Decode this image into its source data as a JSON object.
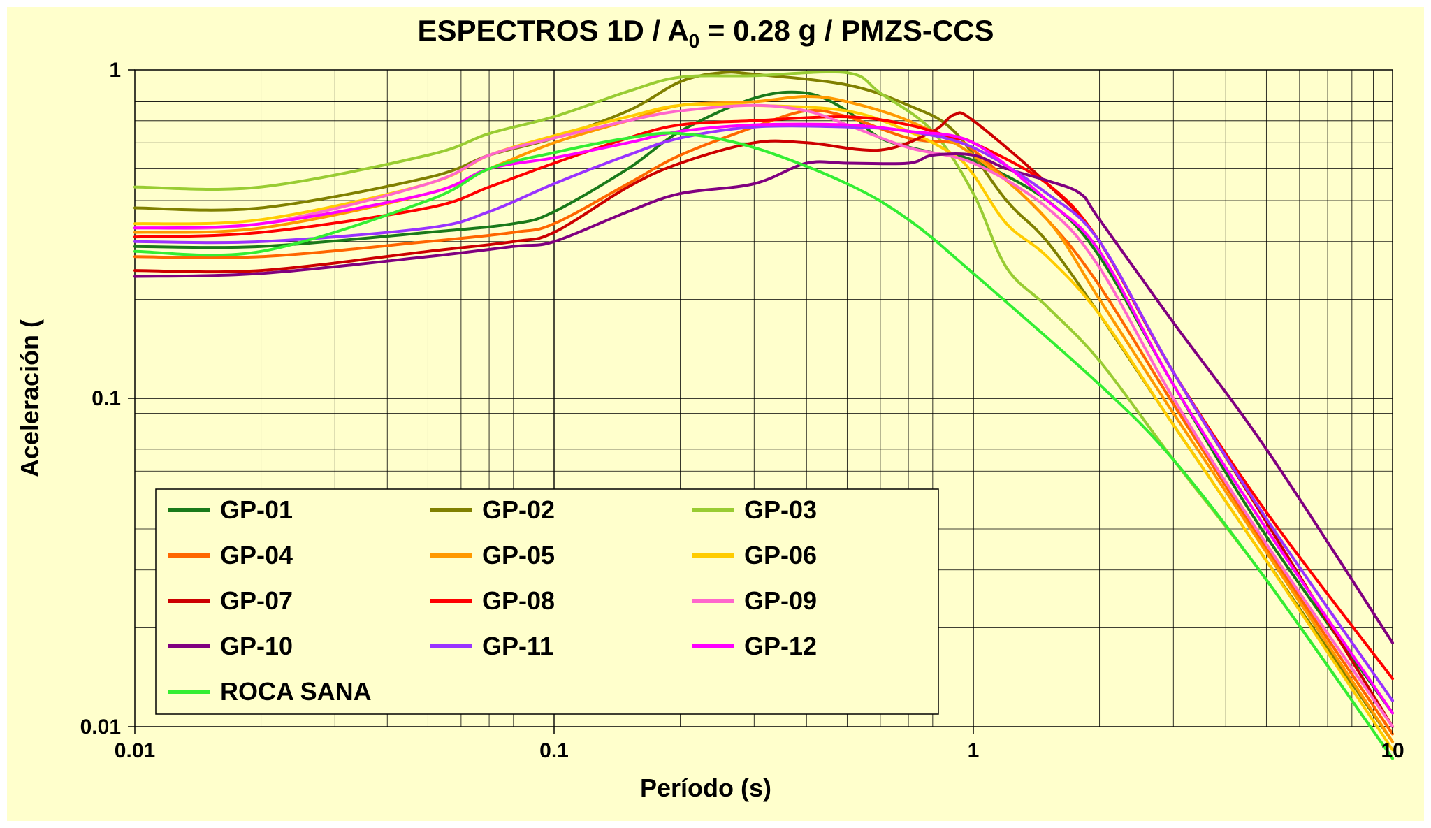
{
  "chart_data": {
    "type": "line",
    "title_main": "ESPECTROS 1D  / A",
    "title_sub": "0",
    "title_tail": " = 0.28 g / PMZS-CCS",
    "xlabel": "Período (s)",
    "ylabel": "Aceleración (",
    "xscale": "log",
    "yscale": "log",
    "xlim": [
      0.01,
      10
    ],
    "ylim": [
      0.01,
      1
    ],
    "xticks": [
      "0.01",
      "0.1",
      "1",
      "10"
    ],
    "yticks": [
      "0.01",
      "0.1",
      "1"
    ],
    "grid": true,
    "legend_position": "bottom-left",
    "series": [
      {
        "name": "GP-01",
        "color": "#1a7a1a",
        "points": [
          [
            0.01,
            0.29
          ],
          [
            0.02,
            0.29
          ],
          [
            0.05,
            0.32
          ],
          [
            0.08,
            0.34
          ],
          [
            0.1,
            0.37
          ],
          [
            0.15,
            0.5
          ],
          [
            0.2,
            0.65
          ],
          [
            0.3,
            0.82
          ],
          [
            0.4,
            0.85
          ],
          [
            0.5,
            0.75
          ],
          [
            0.6,
            0.62
          ],
          [
            0.8,
            0.56
          ],
          [
            1.0,
            0.53
          ],
          [
            1.5,
            0.4
          ],
          [
            2.0,
            0.27
          ],
          [
            3.0,
            0.11
          ],
          [
            5.0,
            0.038
          ],
          [
            10.0,
            0.011
          ]
        ]
      },
      {
        "name": "GP-02",
        "color": "#808000",
        "points": [
          [
            0.01,
            0.38
          ],
          [
            0.02,
            0.38
          ],
          [
            0.05,
            0.47
          ],
          [
            0.07,
            0.55
          ],
          [
            0.1,
            0.62
          ],
          [
            0.15,
            0.75
          ],
          [
            0.2,
            0.92
          ],
          [
            0.25,
            0.98
          ],
          [
            0.3,
            0.97
          ],
          [
            0.5,
            0.9
          ],
          [
            0.7,
            0.78
          ],
          [
            0.9,
            0.65
          ],
          [
            1.2,
            0.4
          ],
          [
            1.5,
            0.3
          ],
          [
            2.0,
            0.18
          ],
          [
            3.0,
            0.083
          ],
          [
            5.0,
            0.032
          ],
          [
            10.0,
            0.009
          ]
        ]
      },
      {
        "name": "GP-03",
        "color": "#99cc33",
        "points": [
          [
            0.01,
            0.44
          ],
          [
            0.02,
            0.44
          ],
          [
            0.05,
            0.55
          ],
          [
            0.07,
            0.64
          ],
          [
            0.1,
            0.72
          ],
          [
            0.15,
            0.86
          ],
          [
            0.2,
            0.95
          ],
          [
            0.3,
            0.96
          ],
          [
            0.5,
            0.98
          ],
          [
            0.6,
            0.85
          ],
          [
            0.8,
            0.65
          ],
          [
            1.0,
            0.42
          ],
          [
            1.2,
            0.25
          ],
          [
            1.5,
            0.19
          ],
          [
            2.0,
            0.13
          ],
          [
            3.0,
            0.065
          ],
          [
            5.0,
            0.028
          ],
          [
            10.0,
            0.008
          ]
        ]
      },
      {
        "name": "GP-04",
        "color": "#ff6600",
        "points": [
          [
            0.01,
            0.27
          ],
          [
            0.02,
            0.27
          ],
          [
            0.05,
            0.3
          ],
          [
            0.08,
            0.32
          ],
          [
            0.1,
            0.34
          ],
          [
            0.15,
            0.45
          ],
          [
            0.2,
            0.55
          ],
          [
            0.3,
            0.67
          ],
          [
            0.4,
            0.75
          ],
          [
            0.5,
            0.72
          ],
          [
            0.7,
            0.62
          ],
          [
            0.9,
            0.6
          ],
          [
            1.0,
            0.57
          ],
          [
            1.5,
            0.35
          ],
          [
            2.0,
            0.22
          ],
          [
            3.0,
            0.096
          ],
          [
            5.0,
            0.035
          ],
          [
            10.0,
            0.0095
          ]
        ]
      },
      {
        "name": "GP-05",
        "color": "#ff9900",
        "points": [
          [
            0.01,
            0.32
          ],
          [
            0.02,
            0.33
          ],
          [
            0.05,
            0.42
          ],
          [
            0.07,
            0.5
          ],
          [
            0.1,
            0.6
          ],
          [
            0.15,
            0.7
          ],
          [
            0.2,
            0.78
          ],
          [
            0.3,
            0.8
          ],
          [
            0.4,
            0.83
          ],
          [
            0.5,
            0.8
          ],
          [
            0.7,
            0.7
          ],
          [
            1.0,
            0.55
          ],
          [
            1.5,
            0.35
          ],
          [
            2.0,
            0.2
          ],
          [
            3.0,
            0.09
          ],
          [
            5.0,
            0.034
          ],
          [
            10.0,
            0.009
          ]
        ]
      },
      {
        "name": "GP-06",
        "color": "#ffcc00",
        "points": [
          [
            0.01,
            0.34
          ],
          [
            0.02,
            0.35
          ],
          [
            0.05,
            0.45
          ],
          [
            0.07,
            0.55
          ],
          [
            0.1,
            0.63
          ],
          [
            0.15,
            0.72
          ],
          [
            0.2,
            0.78
          ],
          [
            0.3,
            0.78
          ],
          [
            0.5,
            0.75
          ],
          [
            0.7,
            0.65
          ],
          [
            0.9,
            0.55
          ],
          [
            1.0,
            0.48
          ],
          [
            1.2,
            0.34
          ],
          [
            1.5,
            0.27
          ],
          [
            2.0,
            0.18
          ],
          [
            3.0,
            0.083
          ],
          [
            5.0,
            0.032
          ],
          [
            10.0,
            0.0085
          ]
        ]
      },
      {
        "name": "GP-07",
        "color": "#cc0000",
        "points": [
          [
            0.01,
            0.245
          ],
          [
            0.02,
            0.245
          ],
          [
            0.05,
            0.28
          ],
          [
            0.08,
            0.3
          ],
          [
            0.1,
            0.32
          ],
          [
            0.15,
            0.44
          ],
          [
            0.2,
            0.52
          ],
          [
            0.3,
            0.6
          ],
          [
            0.4,
            0.6
          ],
          [
            0.6,
            0.57
          ],
          [
            0.8,
            0.65
          ],
          [
            0.9,
            0.73
          ],
          [
            1.0,
            0.7
          ],
          [
            1.5,
            0.45
          ],
          [
            2.0,
            0.3
          ],
          [
            3.0,
            0.12
          ],
          [
            5.0,
            0.042
          ],
          [
            10.0,
            0.01
          ]
        ]
      },
      {
        "name": "GP-08",
        "color": "#ff0000",
        "points": [
          [
            0.01,
            0.31
          ],
          [
            0.02,
            0.32
          ],
          [
            0.05,
            0.38
          ],
          [
            0.07,
            0.44
          ],
          [
            0.1,
            0.52
          ],
          [
            0.15,
            0.62
          ],
          [
            0.2,
            0.68
          ],
          [
            0.3,
            0.7
          ],
          [
            0.5,
            0.72
          ],
          [
            0.7,
            0.68
          ],
          [
            0.9,
            0.62
          ],
          [
            1.0,
            0.6
          ],
          [
            1.5,
            0.45
          ],
          [
            2.0,
            0.3
          ],
          [
            3.0,
            0.12
          ],
          [
            5.0,
            0.045
          ],
          [
            10.0,
            0.014
          ]
        ]
      },
      {
        "name": "GP-09",
        "color": "#ff66cc",
        "points": [
          [
            0.01,
            0.33
          ],
          [
            0.02,
            0.34
          ],
          [
            0.05,
            0.45
          ],
          [
            0.07,
            0.55
          ],
          [
            0.1,
            0.62
          ],
          [
            0.15,
            0.7
          ],
          [
            0.2,
            0.75
          ],
          [
            0.3,
            0.78
          ],
          [
            0.4,
            0.75
          ],
          [
            0.5,
            0.68
          ],
          [
            0.7,
            0.58
          ],
          [
            1.0,
            0.52
          ],
          [
            1.5,
            0.38
          ],
          [
            2.0,
            0.25
          ],
          [
            3.0,
            0.1
          ],
          [
            5.0,
            0.036
          ],
          [
            10.0,
            0.01
          ]
        ]
      },
      {
        "name": "GP-10",
        "color": "#800080",
        "points": [
          [
            0.01,
            0.235
          ],
          [
            0.02,
            0.24
          ],
          [
            0.05,
            0.27
          ],
          [
            0.08,
            0.29
          ],
          [
            0.1,
            0.3
          ],
          [
            0.15,
            0.37
          ],
          [
            0.2,
            0.42
          ],
          [
            0.3,
            0.45
          ],
          [
            0.4,
            0.52
          ],
          [
            0.5,
            0.52
          ],
          [
            0.7,
            0.52
          ],
          [
            0.8,
            0.55
          ],
          [
            1.0,
            0.55
          ],
          [
            1.2,
            0.5
          ],
          [
            1.5,
            0.46
          ],
          [
            1.8,
            0.42
          ],
          [
            2.0,
            0.35
          ],
          [
            3.0,
            0.17
          ],
          [
            5.0,
            0.07
          ],
          [
            10.0,
            0.018
          ]
        ]
      },
      {
        "name": "GP-11",
        "color": "#9933ff",
        "points": [
          [
            0.01,
            0.3
          ],
          [
            0.02,
            0.3
          ],
          [
            0.05,
            0.33
          ],
          [
            0.07,
            0.37
          ],
          [
            0.1,
            0.45
          ],
          [
            0.15,
            0.55
          ],
          [
            0.2,
            0.62
          ],
          [
            0.3,
            0.67
          ],
          [
            0.5,
            0.67
          ],
          [
            0.7,
            0.65
          ],
          [
            1.0,
            0.58
          ],
          [
            1.5,
            0.42
          ],
          [
            2.0,
            0.3
          ],
          [
            3.0,
            0.12
          ],
          [
            5.0,
            0.043
          ],
          [
            10.0,
            0.012
          ]
        ]
      },
      {
        "name": "GP-12",
        "color": "#ff00ff",
        "points": [
          [
            0.01,
            0.33
          ],
          [
            0.02,
            0.34
          ],
          [
            0.05,
            0.42
          ],
          [
            0.07,
            0.5
          ],
          [
            0.1,
            0.54
          ],
          [
            0.15,
            0.6
          ],
          [
            0.2,
            0.65
          ],
          [
            0.3,
            0.68
          ],
          [
            0.5,
            0.68
          ],
          [
            0.7,
            0.65
          ],
          [
            1.0,
            0.6
          ],
          [
            1.5,
            0.4
          ],
          [
            2.0,
            0.28
          ],
          [
            3.0,
            0.11
          ],
          [
            5.0,
            0.04
          ],
          [
            10.0,
            0.011
          ]
        ]
      },
      {
        "name": "ROCA SANA",
        "color": "#33ee33",
        "points": [
          [
            0.01,
            0.28
          ],
          [
            0.02,
            0.28
          ],
          [
            0.05,
            0.4
          ],
          [
            0.07,
            0.5
          ],
          [
            0.1,
            0.56
          ],
          [
            0.15,
            0.62
          ],
          [
            0.2,
            0.64
          ],
          [
            0.3,
            0.58
          ],
          [
            0.5,
            0.45
          ],
          [
            0.7,
            0.35
          ],
          [
            1.0,
            0.24
          ],
          [
            2.0,
            0.11
          ],
          [
            3.0,
            0.065
          ],
          [
            5.0,
            0.028
          ],
          [
            10.0,
            0.008
          ]
        ]
      }
    ]
  }
}
